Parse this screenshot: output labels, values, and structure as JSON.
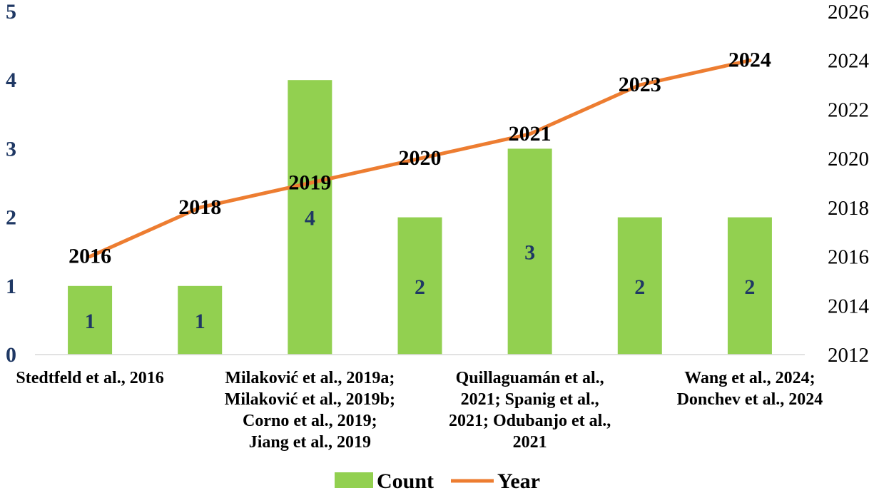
{
  "chart_data": {
    "type": "bar",
    "title": "",
    "xlabel": "",
    "ylabel": "",
    "categories": [
      [
        "Stedtfeld et al., 2016"
      ],
      [
        ""
      ],
      [
        "Milaković et al., 2019a;",
        "Milaković et al., 2019b;",
        "Corno et al., 2019;",
        "Jiang et al., 2019"
      ],
      [
        ""
      ],
      [
        "Quillaguamán et al.,",
        "2021; Spanig et al.,",
        "2021; Odubanjo et al.,",
        "2021"
      ],
      [
        ""
      ],
      [
        "Wang et al., 2024;",
        "Donchev et al., 2024"
      ]
    ],
    "series": [
      {
        "name": "Count",
        "type": "bar",
        "axis": "left",
        "color": "#92d050",
        "values": [
          1,
          1,
          4,
          2,
          3,
          2,
          2
        ],
        "data_labels": [
          "1",
          "1",
          "4",
          "2",
          "3",
          "2",
          "2"
        ]
      },
      {
        "name": "Year",
        "type": "line",
        "axis": "right",
        "color": "#ed7d31",
        "values": [
          2016,
          2018,
          2019,
          2020,
          2021,
          2023,
          2024
        ],
        "data_labels": [
          "2016",
          "2018",
          "2019",
          "2020",
          "2021",
          "2023",
          "2024"
        ]
      }
    ],
    "ylim": [
      0,
      5
    ],
    "y_ticks": [
      "0",
      "1",
      "2",
      "3",
      "4",
      "5"
    ],
    "y2lim": [
      2012,
      2026
    ],
    "y2_ticks": [
      "2012",
      "2014",
      "2016",
      "2018",
      "2020",
      "2022",
      "2024",
      "2026"
    ],
    "legend": {
      "placement": "bottom",
      "entries": [
        {
          "label": "Count"
        },
        {
          "label": "Year"
        }
      ]
    },
    "grid": false
  }
}
